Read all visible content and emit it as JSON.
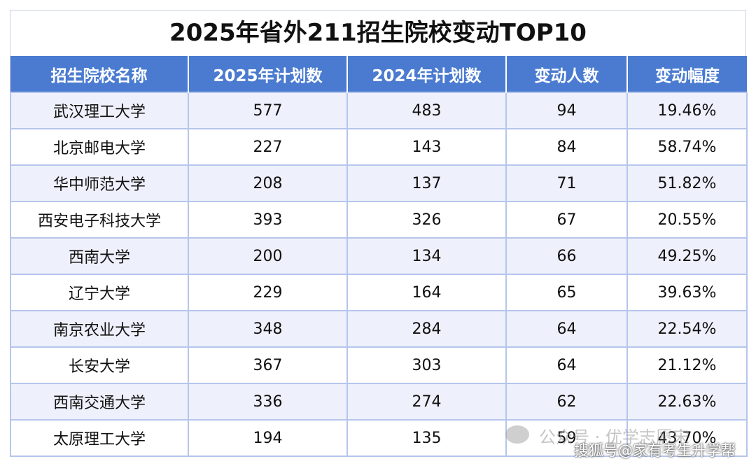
{
  "table": {
    "title": "2025年省外211招生院校变动TOP10",
    "header": [
      "招生院校名称",
      "2025年计划数",
      "2024年计划数",
      "变动人数",
      "变动幅度"
    ],
    "rows": [
      [
        "武汉理工大学",
        "577",
        "483",
        "94",
        "19.46%"
      ],
      [
        "北京邮电大学",
        "227",
        "143",
        "84",
        "58.74%"
      ],
      [
        "华中师范大学",
        "208",
        "137",
        "71",
        "51.82%"
      ],
      [
        "西安电子科技大学",
        "393",
        "326",
        "67",
        "20.55%"
      ],
      [
        "西南大学",
        "200",
        "134",
        "66",
        "49.25%"
      ],
      [
        "辽宁大学",
        "229",
        "164",
        "65",
        "39.63%"
      ],
      [
        "南京农业大学",
        "348",
        "284",
        "64",
        "22.54%"
      ],
      [
        "长安大学",
        "367",
        "303",
        "64",
        "21.12%"
      ],
      [
        "西南交通大学",
        "336",
        "274",
        "62",
        "22.63%"
      ],
      [
        "太原理工大学",
        "194",
        "135",
        "59",
        "43.70%"
      ]
    ]
  },
  "watermark": {
    "line1": "公众号 · 优学志愿宋",
    "line2": "搜狐号@家有考生升学帮"
  }
}
